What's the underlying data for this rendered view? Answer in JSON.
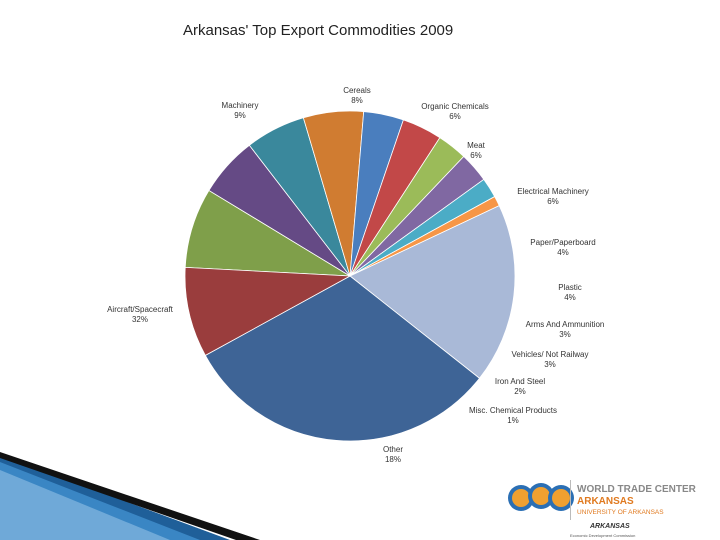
{
  "chart_data": {
    "type": "pie",
    "title": "Arkansas' Top Export Commodities 2009",
    "slices": [
      {
        "label": "Cereals",
        "pct_label": "8%",
        "value": 8,
        "color": "#7f9f4a"
      },
      {
        "label": "Organic Chemicals",
        "pct_label": "6%",
        "value": 6,
        "color": "#654a85"
      },
      {
        "label": "Meat",
        "pct_label": "6%",
        "value": 6,
        "color": "#3a889c"
      },
      {
        "label": "Electrical Machinery",
        "pct_label": "6%",
        "value": 6,
        "color": "#d07c31"
      },
      {
        "label": "Paper/Paperboard",
        "pct_label": "4%",
        "value": 4,
        "color": "#4a7ebe"
      },
      {
        "label": "Plastic",
        "pct_label": "4%",
        "value": 4,
        "color": "#c24848"
      },
      {
        "label": "Arms And Ammunition",
        "pct_label": "3%",
        "value": 3,
        "color": "#9bbb59"
      },
      {
        "label": "Vehicles/ Not Railway",
        "pct_label": "3%",
        "value": 3,
        "color": "#8068a2"
      },
      {
        "label": "Iron And Steel",
        "pct_label": "2%",
        "value": 2,
        "color": "#4bacc6"
      },
      {
        "label": "Misc. Chemical Products",
        "pct_label": "1%",
        "value": 1,
        "color": "#f79646"
      },
      {
        "label": "Other",
        "pct_label": "18%",
        "value": 18,
        "color": "#a9b9d7"
      },
      {
        "label": "Aircraft/Spacecraft",
        "pct_label": "32%",
        "value": 32,
        "color": "#3e6496"
      },
      {
        "label": "Machinery",
        "pct_label": "9%",
        "value": 9,
        "color": "#9a3d3d"
      }
    ]
  },
  "logo": {
    "line1": "WORLD TRADE CENTER",
    "line2": "ARKANSAS",
    "line3": "UNIVERSITY OF ARKANSAS",
    "brand": "ARKANSAS",
    "tagline": "Economic Development Commission"
  }
}
